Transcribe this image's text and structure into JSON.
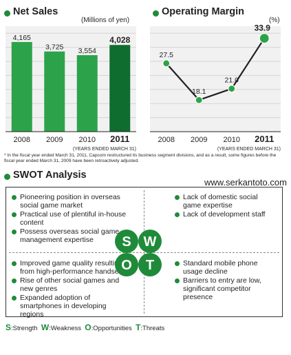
{
  "chart_data": [
    {
      "type": "bar",
      "title": "Net Sales",
      "unit": "(Millions of yen)",
      "categories": [
        "2008",
        "2009",
        "2010",
        "2011"
      ],
      "values": [
        4165,
        3725,
        3554,
        4028
      ],
      "value_labels": [
        "4,165",
        "3,725",
        "3,554",
        "4,028"
      ],
      "highlight": "2011",
      "xlabel": "(YEARS ENDED MARCH 31)",
      "ylim": [
        0,
        4900
      ],
      "colors": {
        "bar": "#2ca34a",
        "highlight": "#0f6e2f",
        "plot_bg": "#f1f1f1"
      }
    },
    {
      "type": "line",
      "title": "Operating Margin",
      "unit": "(%)",
      "categories": [
        "2008",
        "2009",
        "2010",
        "2011"
      ],
      "values": [
        27.5,
        18.1,
        21.0,
        33.9
      ],
      "value_labels": [
        "27.5",
        "18.1",
        "21.0",
        "33.9"
      ],
      "highlight": "2011",
      "xlabel": "(YEARS ENDED MARCH 31)",
      "ylim": [
        10,
        37
      ],
      "colors": {
        "line": "#231f20",
        "marker": "#2ca34a",
        "plot_bg": "#f1f1f1"
      }
    }
  ],
  "footnote": "* In the fiscal year ended March 31, 2011, Capcom restructured its business segment divisions, and as a result, some figures before the fiscal year ended March 31, 2009 have been retroactively adjusted.",
  "swot": {
    "title": "SWOT Analysis",
    "url": "www.serkantoto.com",
    "strengths": [
      "Pioneering position in overseas social game market",
      "Practical use of plentiful in-house content",
      "Possess overseas social game management expertise"
    ],
    "weaknesses": [
      "Lack of domestic social game expertise",
      "Lack of development staff"
    ],
    "opportunities": [
      "Improved game quality resulting from high-performance handsets",
      "Rise of other social games and new genres",
      "Expanded adoption of smartphones in developing regions"
    ],
    "threats": [
      "Standard mobile phone usage decline",
      "Barriers to entry are low, significant competitor presence"
    ],
    "letters": {
      "s": "S",
      "w": "W",
      "o": "O",
      "t": "T"
    },
    "legend": [
      {
        "letter": "S",
        "label": ":Strength"
      },
      {
        "letter": "W",
        "label": ":Weakness"
      },
      {
        "letter": "O",
        "label": ":Opportunities"
      },
      {
        "letter": "T",
        "label": ":Threats"
      }
    ],
    "accent": "#1f8b3a"
  }
}
